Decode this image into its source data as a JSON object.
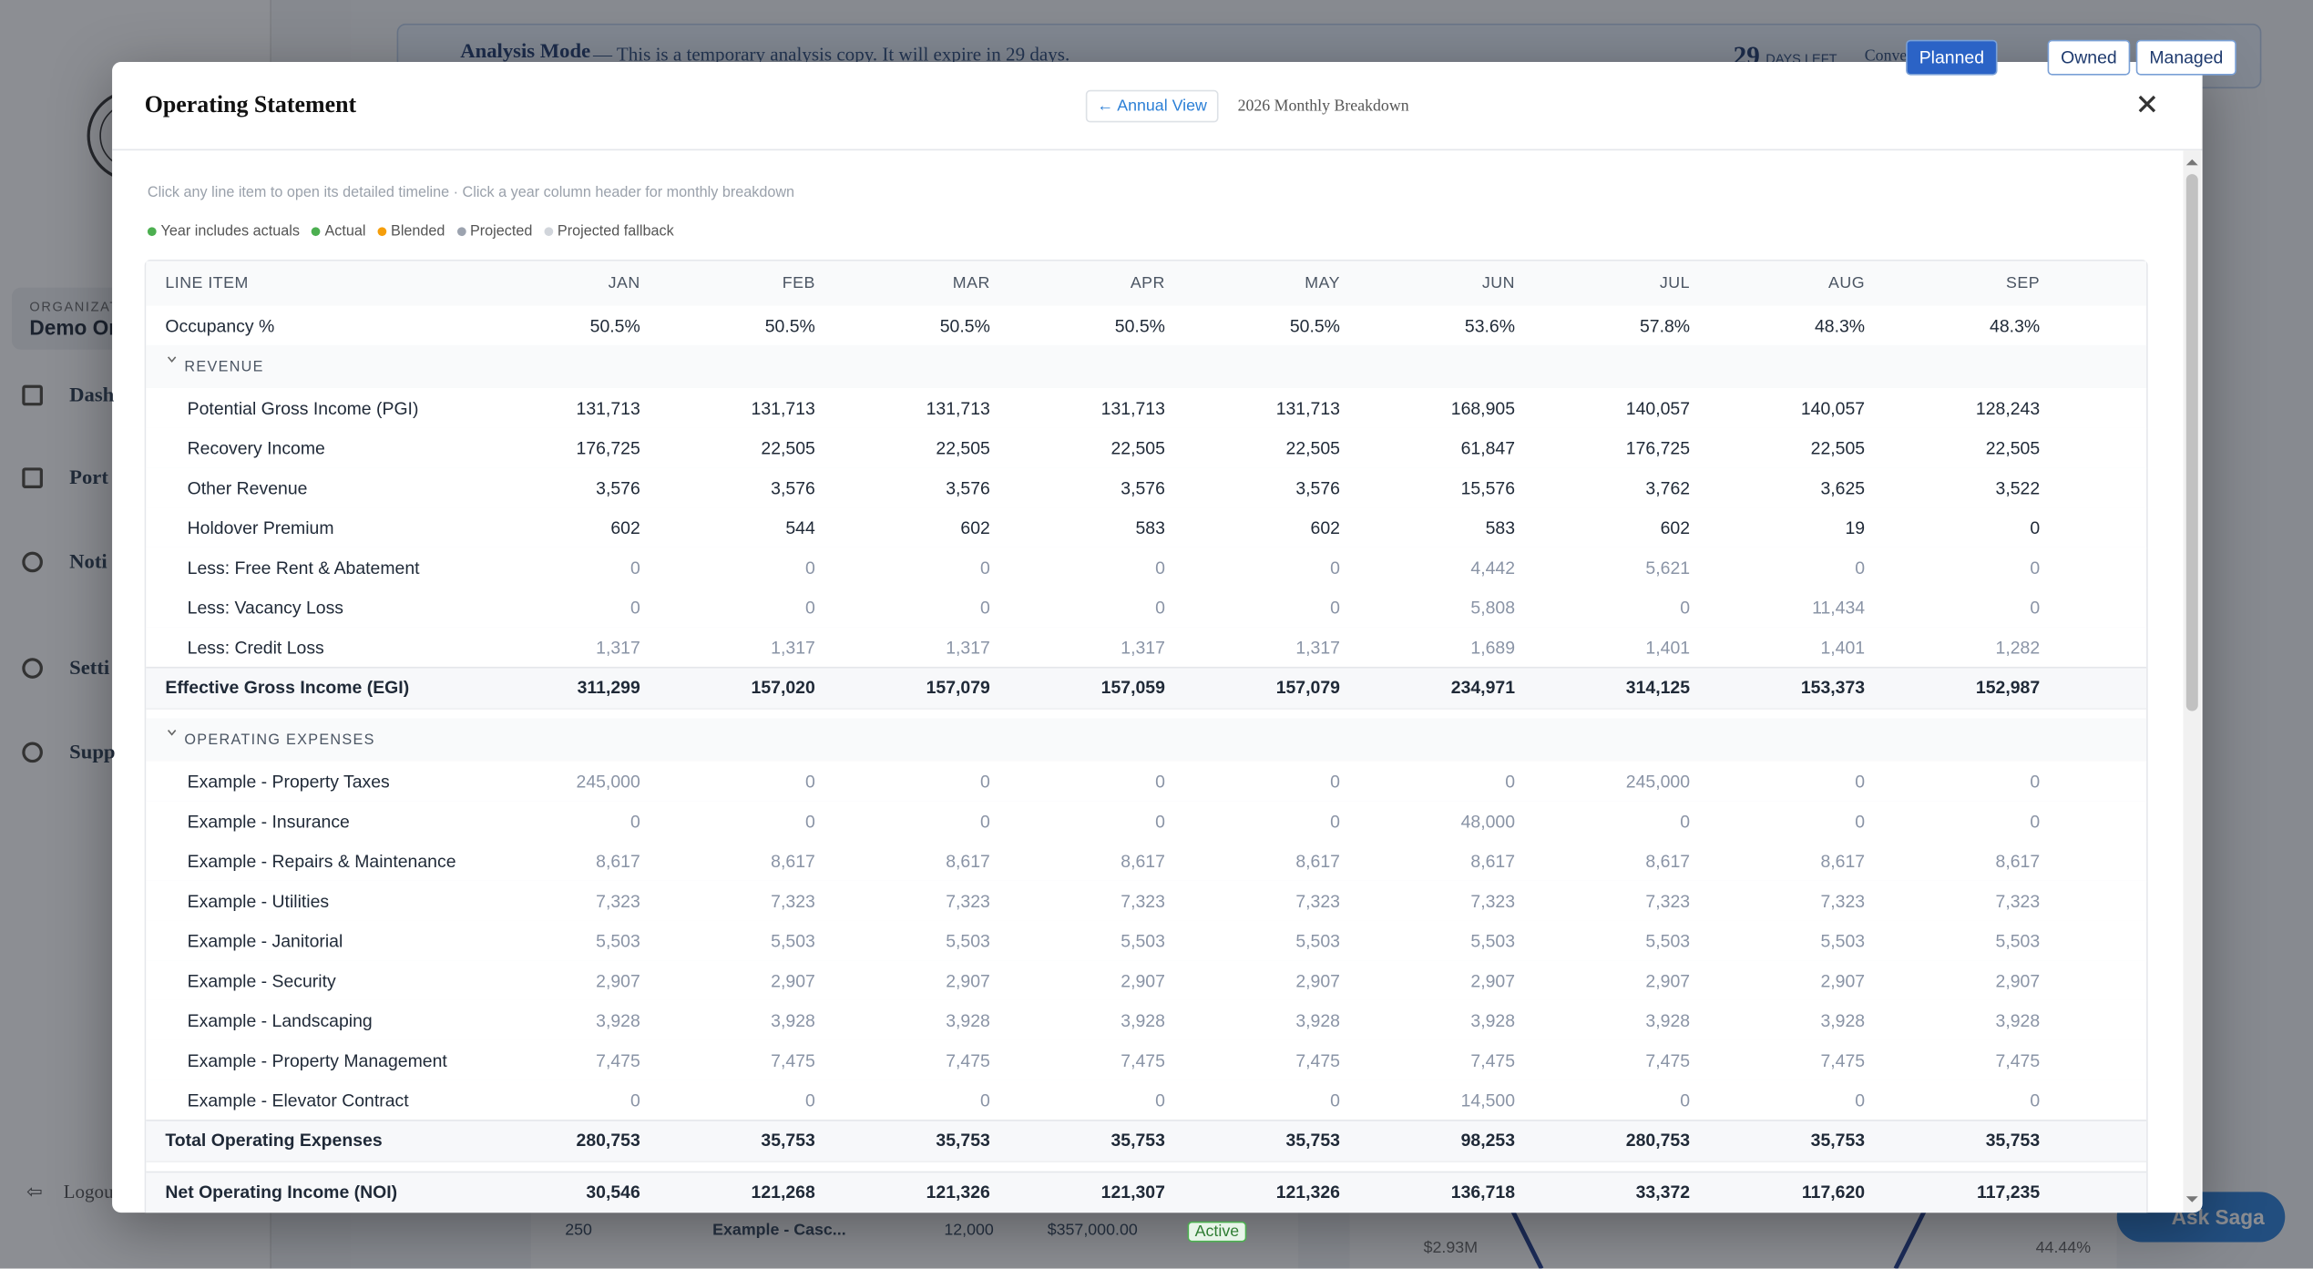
{
  "background": {
    "banner": {
      "title": "Analysis Mode",
      "message": "— This is a temporary analysis copy. It will expire in 29 days.",
      "days": "29",
      "days_label": "DAYS LEFT",
      "convert_label": "Convert to:",
      "options": [
        "Planned",
        "Owned",
        "Managed"
      ]
    },
    "sidebar": {
      "org_label": "ORGANIZAT",
      "org_name": "Demo Or",
      "nav": [
        "Dash",
        "Port",
        "Noti",
        "Setti",
        "Supp"
      ],
      "logout": "Logou"
    },
    "list_row": [
      "250",
      "Example - Casc...",
      "12,000",
      "$357,000.00",
      "Active"
    ],
    "chart_labels": [
      "$2.93M",
      "44.44%"
    ],
    "assistant": "Ask Saga"
  },
  "modal": {
    "title": "Operating Statement",
    "back_button": "← Annual View",
    "subtitle": "2026 Monthly Breakdown",
    "hint": "Click any line item to open its detailed timeline · Click a year column header for monthly breakdown",
    "legend": [
      {
        "label": "Year includes actuals",
        "color": "#4caf50"
      },
      {
        "label": "Actual",
        "color": "#4caf50"
      },
      {
        "label": "Blended",
        "color": "#f59e0b"
      },
      {
        "label": "Projected",
        "color": "#9ca3af"
      },
      {
        "label": "Projected fallback",
        "color": "#d1d5db"
      }
    ],
    "table": {
      "columns": [
        "LINE ITEM",
        "JAN",
        "FEB",
        "MAR",
        "APR",
        "MAY",
        "JUN",
        "JUL",
        "AUG",
        "SEP"
      ],
      "rows": [
        {
          "label": "Occupancy %",
          "values": [
            "50.5%",
            "50.5%",
            "50.5%",
            "50.5%",
            "50.5%",
            "53.6%",
            "57.8%",
            "48.3%",
            "48.3%"
          ]
        },
        {
          "label": "REVENUE",
          "section": true
        },
        {
          "label": "Potential Gross Income (PGI)",
          "indent": true,
          "values": [
            "131,713",
            "131,713",
            "131,713",
            "131,713",
            "131,713",
            "168,905",
            "140,057",
            "140,057",
            "128,243"
          ]
        },
        {
          "label": "Recovery Income",
          "indent": true,
          "values": [
            "176,725",
            "22,505",
            "22,505",
            "22,505",
            "22,505",
            "61,847",
            "176,725",
            "22,505",
            "22,505"
          ]
        },
        {
          "label": "Other Revenue",
          "indent": true,
          "values": [
            "3,576",
            "3,576",
            "3,576",
            "3,576",
            "3,576",
            "15,576",
            "3,762",
            "3,625",
            "3,522"
          ]
        },
        {
          "label": "Holdover Premium",
          "indent": true,
          "values": [
            "602",
            "544",
            "602",
            "583",
            "602",
            "583",
            "602",
            "19",
            "0"
          ]
        },
        {
          "label": "Less: Free Rent & Abatement",
          "indent": true,
          "muted": true,
          "values": [
            "0",
            "0",
            "0",
            "0",
            "0",
            "4,442",
            "5,621",
            "0",
            "0"
          ]
        },
        {
          "label": "Less: Vacancy Loss",
          "indent": true,
          "muted": true,
          "values": [
            "0",
            "0",
            "0",
            "0",
            "0",
            "5,808",
            "0",
            "11,434",
            "0"
          ]
        },
        {
          "label": "Less: Credit Loss",
          "indent": true,
          "muted": true,
          "values": [
            "1,317",
            "1,317",
            "1,317",
            "1,317",
            "1,317",
            "1,689",
            "1,401",
            "1,401",
            "1,282"
          ]
        },
        {
          "label": "Effective Gross Income (EGI)",
          "total": true,
          "values": [
            "311,299",
            "157,020",
            "157,079",
            "157,059",
            "157,079",
            "234,971",
            "314,125",
            "153,373",
            "152,987"
          ]
        },
        {
          "label": "OPERATING EXPENSES",
          "section": true
        },
        {
          "label": "Example - Property Taxes",
          "indent": true,
          "muted": true,
          "values": [
            "245,000",
            "0",
            "0",
            "0",
            "0",
            "0",
            "245,000",
            "0",
            "0"
          ]
        },
        {
          "label": "Example - Insurance",
          "indent": true,
          "muted": true,
          "values": [
            "0",
            "0",
            "0",
            "0",
            "0",
            "48,000",
            "0",
            "0",
            "0"
          ]
        },
        {
          "label": "Example - Repairs & Maintenance",
          "indent": true,
          "muted": true,
          "values": [
            "8,617",
            "8,617",
            "8,617",
            "8,617",
            "8,617",
            "8,617",
            "8,617",
            "8,617",
            "8,617"
          ]
        },
        {
          "label": "Example - Utilities",
          "indent": true,
          "muted": true,
          "values": [
            "7,323",
            "7,323",
            "7,323",
            "7,323",
            "7,323",
            "7,323",
            "7,323",
            "7,323",
            "7,323"
          ]
        },
        {
          "label": "Example - Janitorial",
          "indent": true,
          "muted": true,
          "values": [
            "5,503",
            "5,503",
            "5,503",
            "5,503",
            "5,503",
            "5,503",
            "5,503",
            "5,503",
            "5,503"
          ]
        },
        {
          "label": "Example - Security",
          "indent": true,
          "muted": true,
          "values": [
            "2,907",
            "2,907",
            "2,907",
            "2,907",
            "2,907",
            "2,907",
            "2,907",
            "2,907",
            "2,907"
          ]
        },
        {
          "label": "Example - Landscaping",
          "indent": true,
          "muted": true,
          "values": [
            "3,928",
            "3,928",
            "3,928",
            "3,928",
            "3,928",
            "3,928",
            "3,928",
            "3,928",
            "3,928"
          ]
        },
        {
          "label": "Example - Property Management",
          "indent": true,
          "muted": true,
          "values": [
            "7,475",
            "7,475",
            "7,475",
            "7,475",
            "7,475",
            "7,475",
            "7,475",
            "7,475",
            "7,475"
          ]
        },
        {
          "label": "Example - Elevator Contract",
          "indent": true,
          "muted": true,
          "values": [
            "0",
            "0",
            "0",
            "0",
            "0",
            "14,500",
            "0",
            "0",
            "0"
          ]
        },
        {
          "label": "Total Operating Expenses",
          "total": true,
          "values": [
            "280,753",
            "35,753",
            "35,753",
            "35,753",
            "35,753",
            "98,253",
            "280,753",
            "35,753",
            "35,753"
          ]
        },
        {
          "label": "Net Operating Income (NOI)",
          "total": true,
          "strong": true,
          "values": [
            "30,546",
            "121,268",
            "121,326",
            "121,307",
            "121,326",
            "136,718",
            "33,372",
            "117,620",
            "117,235"
          ]
        }
      ]
    }
  }
}
